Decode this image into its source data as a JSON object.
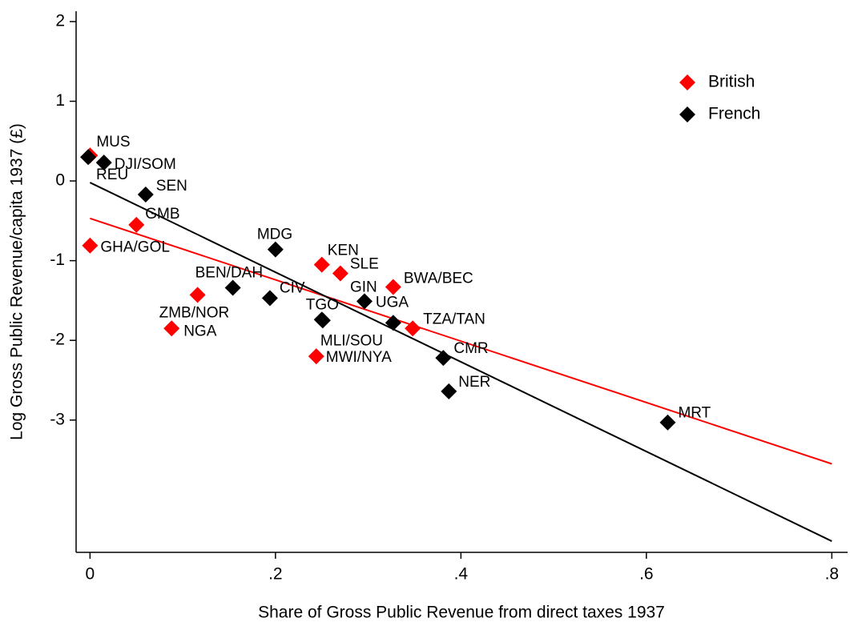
{
  "chart_data": {
    "type": "scatter",
    "x_label": "Share of Gross Public Revenue from direct taxes 1937",
    "y_label": "Log Gross Public Revenue/capita 1937 (£)",
    "xlim": [
      -0.015,
      0.817
    ],
    "ylim": [
      -4.66,
      2.13
    ],
    "xticks": [
      0,
      {
        "value": 0.2,
        "label": ".2"
      },
      {
        "value": 0.4,
        "label": ".4"
      },
      {
        "value": 0.6,
        "label": ".6"
      },
      {
        "value": 0.8,
        "label": ".8"
      }
    ],
    "yticks": [
      2,
      1,
      0,
      -1,
      -2,
      -3
    ],
    "legend": "top-right",
    "series": [
      {
        "name": "British",
        "color": "#ff0000",
        "labels": [
          "MUS",
          "GMB",
          "GHA/GOL",
          "ZMB/NOR",
          "NGA",
          "KEN",
          "SLE",
          "MWI/NYA",
          "BWA/BEC",
          "TZA/TAN"
        ],
        "x": [
          0,
          0.05,
          0,
          0.116,
          0.088,
          0.25,
          0.27,
          0.244,
          0.327,
          0.348
        ],
        "values": [
          0.32,
          -0.55,
          -0.81,
          -1.43,
          -1.85,
          -1.05,
          -1.16,
          -2.2,
          -1.33,
          -1.85
        ],
        "fit": {
          "x": [
            0,
            0.8
          ],
          "values": [
            -0.47,
            -3.55
          ]
        }
      },
      {
        "name": "French",
        "color": "#000000",
        "labels": [
          "REU",
          "DJI/SOM",
          "SEN",
          "MDG",
          "BEN/DAH",
          "CIV",
          "TGO",
          "MLI/SOU",
          "GIN",
          "UGA",
          "CMR",
          "NER",
          "MRT"
        ],
        "x": [
          -0.002,
          0.015,
          0.06,
          0.2,
          0.154,
          0.194,
          0.25,
          0.251,
          0.296,
          0.327,
          0.381,
          0.387,
          0.623
        ],
        "values": [
          0.3,
          0.23,
          -0.17,
          -0.86,
          -1.34,
          -1.47,
          -1.74,
          -1.75,
          -1.51,
          -1.78,
          -2.22,
          -2.64,
          -3.03
        ],
        "fit": {
          "x": [
            0,
            0.8
          ],
          "values": [
            -0.02,
            -4.52
          ]
        }
      }
    ]
  }
}
